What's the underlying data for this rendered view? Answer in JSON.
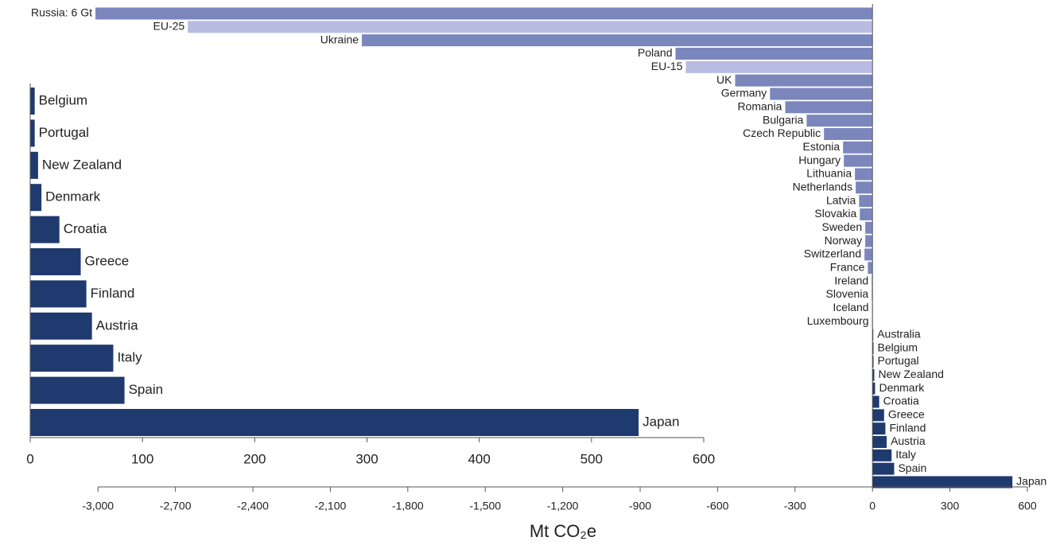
{
  "chart_data": [
    {
      "type": "hbar",
      "xlabel": "Mt CO₂e",
      "categories": [
        "Russia: 6 Gt",
        "EU-25",
        "Ukraine",
        "Poland",
        "EU-15",
        "UK",
        "Germany",
        "Romania",
        "Bulgaria",
        "Czech Republic",
        "Estonia",
        "Hungary",
        "Lithuania",
        "Netherlands",
        "Latvia",
        "Slovakia",
        "Sweden",
        "Norway",
        "Switzerland",
        "France",
        "Ireland",
        "Slovenia",
        "Iceland",
        "Luxembourg",
        "Australia",
        "Belgium",
        "Portugal",
        "New Zealand",
        "Denmark",
        "Croatia",
        "Greece",
        "Finland",
        "Austria",
        "Italy",
        "Spain",
        "Japan"
      ],
      "values": [
        -3010,
        -2652,
        -1978,
        -763,
        -723,
        -532,
        -397,
        -338,
        -255,
        -188,
        -114,
        -111,
        -68,
        -65,
        -52,
        -49,
        -28,
        -28,
        -31,
        -18,
        -3,
        -3,
        -2,
        -2,
        1,
        4,
        4,
        7,
        10,
        26,
        45,
        50,
        55,
        74,
        84,
        542
      ],
      "colors": [
        "#7b86bd",
        "#b8bce2",
        "#7b86bd",
        "#7b86bd",
        "#b8bce2",
        "#7b86bd",
        "#7b86bd",
        "#7b86bd",
        "#7b86bd",
        "#7b86bd",
        "#7b86bd",
        "#7b86bd",
        "#7b86bd",
        "#7b86bd",
        "#7b86bd",
        "#7b86bd",
        "#7b86bd",
        "#7b86bd",
        "#7b86bd",
        "#7b86bd",
        "#7b86bd",
        "#7b86bd",
        "#7b86bd",
        "#7b86bd",
        "#1f3a6e",
        "#1f3a6e",
        "#1f3a6e",
        "#1f3a6e",
        "#1f3a6e",
        "#1f3a6e",
        "#1f3a6e",
        "#1f3a6e",
        "#1f3a6e",
        "#1f3a6e",
        "#1f3a6e",
        "#1f3a6e"
      ],
      "xlim": [
        -3010,
        600
      ],
      "xticks": [
        {
          "value": -3000,
          "label": "-3,000"
        },
        {
          "value": -2700,
          "label": "-2,700"
        },
        {
          "value": -2400,
          "label": "-2,400"
        },
        {
          "value": -2100,
          "label": "-2,100"
        },
        {
          "value": -1800,
          "label": "-1,800"
        },
        {
          "value": -1500,
          "label": "-1,500"
        },
        {
          "value": -1200,
          "label": "-1,200"
        },
        -900,
        -600,
        -300,
        0,
        300,
        600
      ]
    },
    {
      "type": "hbar",
      "categories": [
        "Belgium",
        "Portugal",
        "New Zealand",
        "Denmark",
        "Croatia",
        "Greece",
        "Finland",
        "Austria",
        "Italy",
        "Spain",
        "Japan"
      ],
      "values": [
        4,
        4,
        7,
        10,
        26,
        45,
        50,
        55,
        74,
        84,
        542
      ],
      "color": "#1f3a6e",
      "xlim": [
        0,
        600
      ],
      "xticks": [
        0,
        100,
        200,
        300,
        400,
        500,
        600
      ]
    }
  ]
}
